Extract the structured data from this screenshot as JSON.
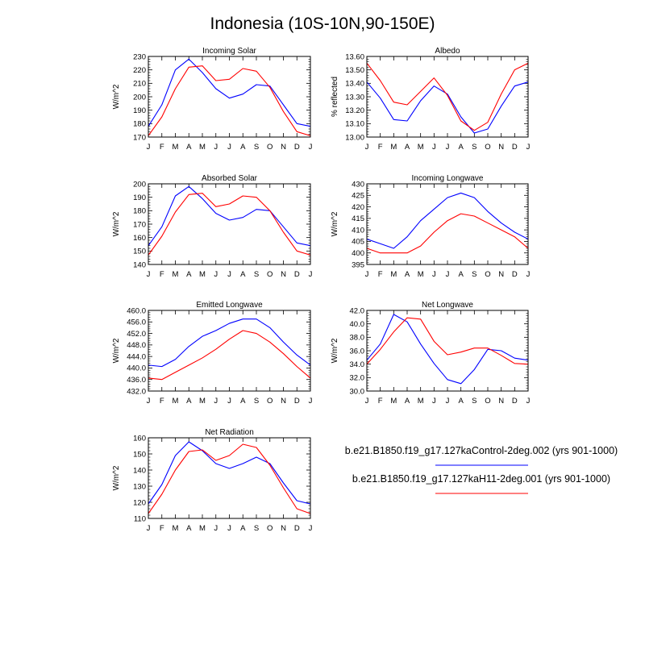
{
  "figure_title": "Indonesia (10S-10N,90-150E)",
  "legend": {
    "entries": [
      {
        "label": "b.e21.B1850.f19_g17.127kaControl-2deg.002 (yrs 901-1000)",
        "color": "#0000ff"
      },
      {
        "label": "b.e21.B1850.f19_g17.127kaH11-2deg.001 (yrs 901-1000)",
        "color": "#ff0000"
      }
    ]
  },
  "chart_data": [
    {
      "type": "line",
      "title": "Incoming Solar",
      "ylabel": "W/m^2",
      "categories": [
        "J",
        "F",
        "M",
        "A",
        "M",
        "J",
        "J",
        "A",
        "S",
        "O",
        "N",
        "D",
        "J"
      ],
      "ylim": [
        170,
        230
      ],
      "yticks": [
        170,
        180,
        190,
        200,
        210,
        220,
        230
      ],
      "ytick_labels": [
        "170",
        "180",
        "190",
        "200",
        "210",
        "220",
        "230"
      ],
      "series": [
        {
          "values": [
            178,
            194,
            220,
            228,
            218,
            206,
            199,
            202,
            209,
            208,
            194,
            180,
            178
          ],
          "color": "#0000ff"
        },
        {
          "values": [
            171,
            185,
            206,
            222,
            223,
            212,
            213,
            221,
            219,
            207,
            189,
            174,
            171
          ],
          "color": "#ff0000"
        }
      ]
    },
    {
      "type": "line",
      "title": "Albedo",
      "ylabel": "% reflected",
      "categories": [
        "J",
        "F",
        "M",
        "A",
        "M",
        "J",
        "J",
        "A",
        "S",
        "O",
        "N",
        "D",
        "J"
      ],
      "ylim": [
        13.0,
        13.6
      ],
      "yticks": [
        13.0,
        13.1,
        13.2,
        13.3,
        13.4,
        13.5,
        13.6
      ],
      "ytick_labels": [
        "13.00",
        "13.10",
        "13.20",
        "13.30",
        "13.40",
        "13.50",
        "13.60"
      ],
      "series": [
        {
          "values": [
            13.41,
            13.29,
            13.13,
            13.12,
            13.27,
            13.38,
            13.32,
            13.15,
            13.03,
            13.06,
            13.23,
            13.38,
            13.41
          ],
          "color": "#0000ff"
        },
        {
          "values": [
            13.55,
            13.42,
            13.26,
            13.24,
            13.34,
            13.44,
            13.31,
            13.12,
            13.05,
            13.11,
            13.32,
            13.5,
            13.55
          ],
          "color": "#ff0000"
        }
      ]
    },
    {
      "type": "line",
      "title": "Absorbed Solar",
      "ylabel": "W/m^2",
      "categories": [
        "J",
        "F",
        "M",
        "A",
        "M",
        "J",
        "J",
        "A",
        "S",
        "O",
        "N",
        "D",
        "J"
      ],
      "ylim": [
        140,
        200
      ],
      "yticks": [
        140,
        150,
        160,
        170,
        180,
        190,
        200
      ],
      "ytick_labels": [
        "140",
        "150",
        "160",
        "170",
        "180",
        "190",
        "200"
      ],
      "series": [
        {
          "values": [
            154,
            168,
            191,
            198,
            189,
            178,
            173,
            175,
            181,
            180,
            168,
            156,
            154
          ],
          "color": "#0000ff"
        },
        {
          "values": [
            147,
            161,
            179,
            192,
            193,
            183,
            185,
            191,
            190,
            180,
            164,
            150,
            147
          ],
          "color": "#ff0000"
        }
      ]
    },
    {
      "type": "line",
      "title": "Incoming Longwave",
      "ylabel": "W/m^2",
      "categories": [
        "J",
        "F",
        "M",
        "A",
        "M",
        "J",
        "J",
        "A",
        "S",
        "O",
        "N",
        "D",
        "J"
      ],
      "ylim": [
        395,
        430
      ],
      "yticks": [
        395,
        400,
        405,
        410,
        415,
        420,
        425,
        430
      ],
      "ytick_labels": [
        "395",
        "400",
        "405",
        "410",
        "415",
        "420",
        "425",
        "430"
      ],
      "series": [
        {
          "values": [
            406,
            404,
            402,
            407,
            414,
            419,
            424,
            426,
            424,
            418,
            413,
            409,
            406
          ],
          "color": "#0000ff"
        },
        {
          "values": [
            402,
            400,
            400,
            400,
            403,
            409,
            414,
            417,
            416,
            413,
            410,
            407,
            402
          ],
          "color": "#ff0000"
        }
      ]
    },
    {
      "type": "line",
      "title": "Emitted Longwave",
      "ylabel": "W/m^2",
      "categories": [
        "J",
        "F",
        "M",
        "A",
        "M",
        "J",
        "J",
        "A",
        "S",
        "O",
        "N",
        "D",
        "J"
      ],
      "ylim": [
        432,
        460
      ],
      "yticks": [
        432,
        436,
        440,
        444,
        448,
        452,
        456,
        460
      ],
      "ytick_labels": [
        "432.0",
        "436.0",
        "440.0",
        "444.0",
        "448.0",
        "452.0",
        "456.0",
        "460.0"
      ],
      "series": [
        {
          "values": [
            441,
            440.5,
            443,
            447.5,
            451,
            453,
            455.5,
            457,
            457,
            454,
            449,
            444.5,
            441
          ],
          "color": "#0000ff"
        },
        {
          "values": [
            436.5,
            436,
            438.5,
            441,
            443.5,
            446.5,
            450,
            453,
            452,
            449,
            445,
            440.5,
            436.5
          ],
          "color": "#ff0000"
        }
      ]
    },
    {
      "type": "line",
      "title": "Net Longwave",
      "ylabel": "W/m^2",
      "categories": [
        "J",
        "F",
        "M",
        "A",
        "M",
        "J",
        "J",
        "A",
        "S",
        "O",
        "N",
        "D",
        "J"
      ],
      "ylim": [
        30,
        42
      ],
      "yticks": [
        30,
        32,
        34,
        36,
        38,
        40,
        42
      ],
      "ytick_labels": [
        "30.0",
        "32.0",
        "34.0",
        "36.0",
        "38.0",
        "40.0",
        "42.0"
      ],
      "series": [
        {
          "values": [
            34.6,
            37,
            41.4,
            40.3,
            37,
            34.1,
            31.7,
            31.1,
            33.2,
            36.2,
            36.0,
            34.9,
            34.6
          ],
          "color": "#0000ff"
        },
        {
          "values": [
            34.0,
            36.2,
            38.8,
            40.9,
            40.7,
            37.4,
            35.4,
            35.8,
            36.4,
            36.4,
            35.3,
            34.1,
            34.0
          ],
          "color": "#ff0000"
        }
      ]
    },
    {
      "type": "line",
      "title": "Net Radiation",
      "ylabel": "W/m^2",
      "categories": [
        "J",
        "F",
        "M",
        "A",
        "M",
        "J",
        "J",
        "A",
        "S",
        "O",
        "N",
        "D",
        "J"
      ],
      "ylim": [
        110,
        160
      ],
      "yticks": [
        110,
        120,
        130,
        140,
        150,
        160
      ],
      "ytick_labels": [
        "110",
        "120",
        "130",
        "140",
        "150",
        "160"
      ],
      "series": [
        {
          "values": [
            119,
            131,
            149,
            157.5,
            152,
            144,
            141,
            144,
            148,
            144,
            132,
            121,
            119
          ],
          "color": "#0000ff"
        },
        {
          "values": [
            113,
            125,
            140,
            151.5,
            152.5,
            146,
            149,
            156,
            154,
            143,
            129,
            116,
            113
          ],
          "color": "#ff0000"
        }
      ]
    }
  ]
}
